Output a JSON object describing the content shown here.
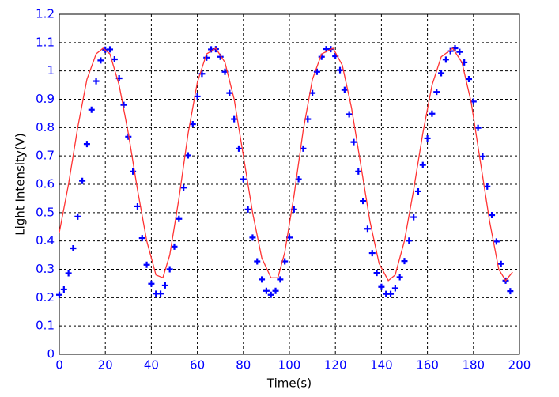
{
  "chart_data": {
    "type": "scatter",
    "xlabel": "Time(s)",
    "ylabel": "Light Intensity(V)",
    "xlim": [
      0,
      200
    ],
    "xticks": [
      0,
      20,
      40,
      60,
      80,
      100,
      120,
      140,
      160,
      180,
      200
    ],
    "ylim": [
      0,
      1.2
    ],
    "yticks": [
      0,
      0.1,
      0.2,
      0.3,
      0.4,
      0.5,
      0.6,
      0.7,
      0.8,
      0.9,
      1,
      1.1,
      1.2
    ],
    "grid": true,
    "series": [
      {
        "type": "scatter",
        "marker": "+",
        "color": "#0000ff",
        "x": [
          0,
          2,
          4,
          6,
          8,
          10,
          12,
          14,
          16,
          18,
          20,
          22,
          24,
          26,
          28,
          30,
          32,
          34,
          36,
          38,
          40,
          42,
          44,
          46,
          48,
          50,
          52,
          54,
          56,
          58,
          60,
          62,
          64,
          66,
          68,
          70,
          72,
          74,
          76,
          78,
          80,
          82,
          84,
          86,
          88,
          90,
          92,
          94,
          96,
          98,
          100,
          102,
          104,
          106,
          108,
          110,
          112,
          114,
          116,
          118,
          120,
          122,
          124,
          126,
          128,
          130,
          132,
          134,
          136,
          138,
          140,
          142,
          144,
          146,
          148,
          150,
          152,
          154,
          156,
          158,
          160,
          162,
          164,
          166,
          168,
          170,
          172,
          174,
          176,
          178,
          180,
          182,
          184,
          186,
          188,
          190,
          192,
          194,
          196
        ],
        "values": [
          0.21,
          0.229,
          0.286,
          0.374,
          0.486,
          0.612,
          0.742,
          0.863,
          0.964,
          1.037,
          1.075,
          1.076,
          1.041,
          0.974,
          0.88,
          0.768,
          0.645,
          0.522,
          0.41,
          0.316,
          0.249,
          0.214,
          0.214,
          0.243,
          0.3,
          0.38,
          0.478,
          0.588,
          0.702,
          0.812,
          0.91,
          0.99,
          1.047,
          1.076,
          1.077,
          1.05,
          0.997,
          0.922,
          0.83,
          0.726,
          0.618,
          0.511,
          0.412,
          0.328,
          0.264,
          0.224,
          0.21,
          0.224,
          0.264,
          0.328,
          0.412,
          0.511,
          0.618,
          0.726,
          0.83,
          0.922,
          0.997,
          1.05,
          1.077,
          1.077,
          1.052,
          1.003,
          0.933,
          0.847,
          0.749,
          0.645,
          0.541,
          0.443,
          0.357,
          0.287,
          0.238,
          0.213,
          0.213,
          0.233,
          0.272,
          0.329,
          0.401,
          0.484,
          0.575,
          0.668,
          0.762,
          0.849,
          0.926,
          0.992,
          1.04,
          1.07,
          1.08,
          1.067,
          1.03,
          0.971,
          0.892,
          0.799,
          0.698,
          0.592,
          0.491,
          0.398,
          0.319,
          0.26,
          0.223
        ]
      },
      {
        "type": "line",
        "color": "#ff3333",
        "x": [
          0,
          4,
          8,
          12,
          16,
          19,
          22,
          26,
          30,
          34,
          38,
          42,
          45,
          48,
          52,
          56,
          60,
          64,
          68,
          72,
          76,
          80,
          84,
          88,
          92,
          95,
          98,
          102,
          106,
          110,
          114,
          119,
          123,
          127,
          131,
          135,
          139,
          143,
          146,
          150,
          154,
          158,
          162,
          166,
          171,
          175,
          179,
          183,
          187,
          191,
          194,
          197
        ],
        "values": [
          0.43,
          0.6,
          0.8,
          0.97,
          1.06,
          1.08,
          1.06,
          0.95,
          0.78,
          0.58,
          0.4,
          0.28,
          0.27,
          0.35,
          0.55,
          0.78,
          0.96,
          1.06,
          1.08,
          1.03,
          0.9,
          0.7,
          0.5,
          0.34,
          0.27,
          0.27,
          0.36,
          0.56,
          0.79,
          0.97,
          1.06,
          1.08,
          1.02,
          0.87,
          0.67,
          0.47,
          0.32,
          0.26,
          0.28,
          0.4,
          0.58,
          0.78,
          0.95,
          1.05,
          1.08,
          1.03,
          0.89,
          0.68,
          0.47,
          0.3,
          0.26,
          0.29
        ]
      }
    ]
  }
}
